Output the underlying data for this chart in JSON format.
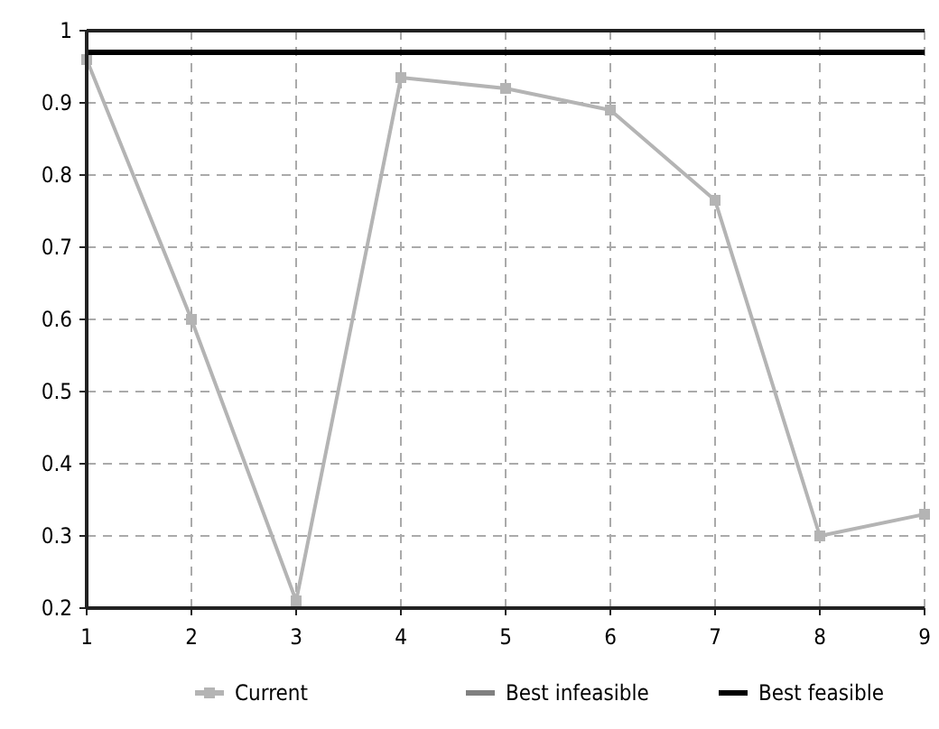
{
  "chart_data": {
    "type": "line",
    "x": [
      1,
      2,
      3,
      4,
      5,
      6,
      7,
      8,
      9
    ],
    "xlim": [
      1,
      9
    ],
    "xticks": [
      1,
      2,
      3,
      4,
      5,
      6,
      7,
      8,
      9
    ],
    "ylim": [
      0.2,
      1
    ],
    "yticks": [
      0.2,
      0.3,
      0.4,
      0.5,
      0.6,
      0.7,
      0.8,
      0.9,
      1
    ],
    "grid": true,
    "legend": "bottom",
    "series": [
      {
        "name": "Current",
        "color": "#b4b4b4",
        "marker": "square",
        "values": [
          0.96,
          0.6,
          0.21,
          0.935,
          0.92,
          0.89,
          0.765,
          0.3,
          0.33
        ]
      },
      {
        "name": "Best infeasible",
        "color": "#808080",
        "marker": "none",
        "values": [
          null,
          null,
          null,
          null,
          null,
          null,
          null,
          null,
          null
        ]
      },
      {
        "name": "Best feasible",
        "color": "#000000",
        "marker": "none",
        "values": [
          0.97,
          0.97,
          0.97,
          0.97,
          0.97,
          0.97,
          0.97,
          0.97,
          0.97
        ]
      }
    ]
  }
}
